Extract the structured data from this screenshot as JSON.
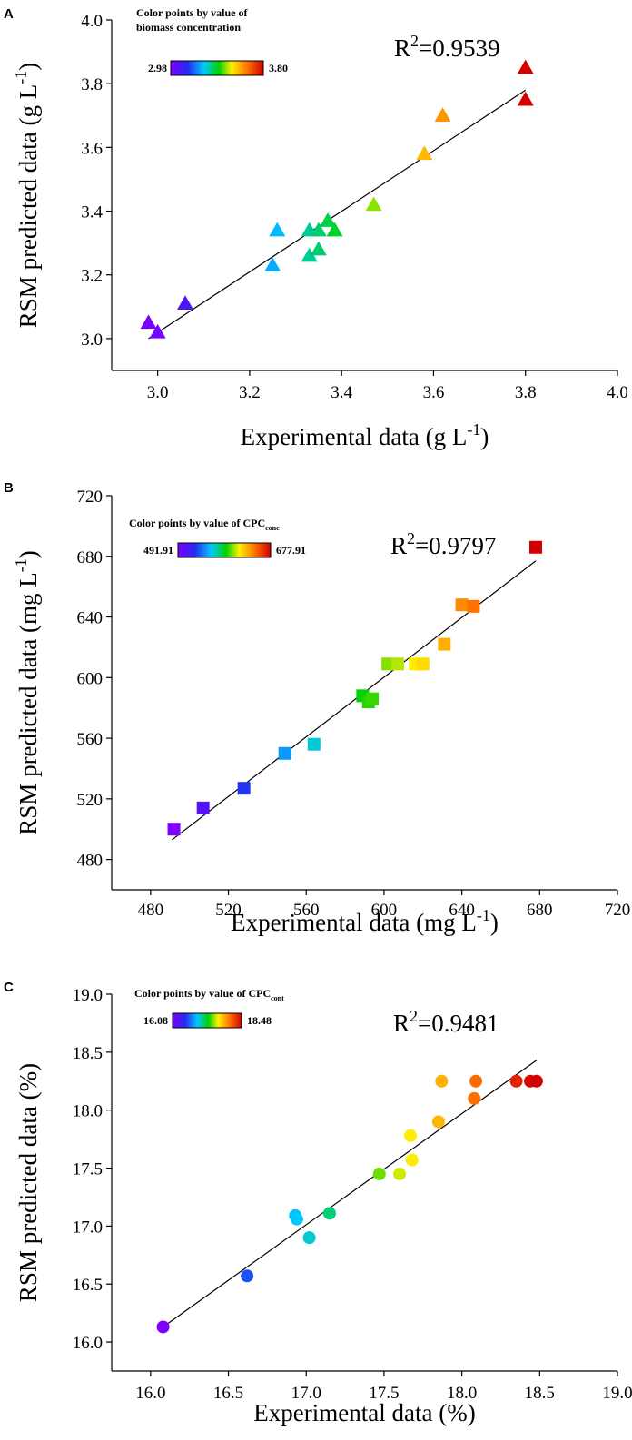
{
  "chart_data": [
    {
      "panel_label": "A",
      "type": "scatter",
      "marker": "triangle",
      "xlabel": "Experimental data (g L-1)",
      "xlabel_main": "Experimental data (g L",
      "xlabel_sup": "-1",
      "xlabel_tail": ")",
      "ylabel": "RSM predicted data (g L-1)",
      "ylabel_main": "RSM predicted data (g L",
      "ylabel_sup": "-1",
      "ylabel_tail": ")",
      "xlim": [
        2.9,
        4.0
      ],
      "ylim": [
        2.9,
        4.0
      ],
      "xticks": [
        "3.0",
        "3.2",
        "3.4",
        "3.6",
        "3.8",
        "4.0"
      ],
      "xtick_values": [
        3.0,
        3.2,
        3.4,
        3.6,
        3.8,
        4.0
      ],
      "yticks": [
        "3.0",
        "3.2",
        "3.4",
        "3.6",
        "3.8",
        "4.0"
      ],
      "ytick_values": [
        3.0,
        3.2,
        3.4,
        3.6,
        3.8,
        4.0
      ],
      "r2_label": "R",
      "r2_sup": "2",
      "r2_value": "=0.9539",
      "colorbar": {
        "title_line1": "Color points by value of",
        "title_line2": "biomass concentration",
        "title_sub": "",
        "min_label": "2.98",
        "max_label": "3.80",
        "min": 2.98,
        "max": 3.8,
        "position": "top-left"
      },
      "fit_line": {
        "x": [
          2.98,
          3.8
        ],
        "y": [
          3.0,
          3.78
        ]
      },
      "points": [
        {
          "x": 2.98,
          "y": 3.05
        },
        {
          "x": 3.0,
          "y": 3.02
        },
        {
          "x": 3.06,
          "y": 3.11
        },
        {
          "x": 3.25,
          "y": 3.23
        },
        {
          "x": 3.26,
          "y": 3.34
        },
        {
          "x": 3.33,
          "y": 3.26
        },
        {
          "x": 3.33,
          "y": 3.34
        },
        {
          "x": 3.35,
          "y": 3.28
        },
        {
          "x": 3.35,
          "y": 3.34
        },
        {
          "x": 3.37,
          "y": 3.37
        },
        {
          "x": 3.385,
          "y": 3.34
        },
        {
          "x": 3.47,
          "y": 3.42
        },
        {
          "x": 3.58,
          "y": 3.58
        },
        {
          "x": 3.62,
          "y": 3.7
        },
        {
          "x": 3.8,
          "y": 3.85
        },
        {
          "x": 3.8,
          "y": 3.75
        }
      ]
    },
    {
      "panel_label": "B",
      "type": "scatter",
      "marker": "square",
      "xlabel": "Experimental data  (mg L-1)",
      "xlabel_main": "Experimental data  (mg L",
      "xlabel_sup": "-1",
      "xlabel_tail": ")",
      "ylabel": "RSM predicted data (mg L-1)",
      "ylabel_main": "RSM predicted data (mg L",
      "ylabel_sup": "-1",
      "ylabel_tail": ")",
      "xlim": [
        460,
        720
      ],
      "ylim": [
        460,
        720
      ],
      "xticks": [
        "480",
        "520",
        "560",
        "600",
        "640",
        "680",
        "720"
      ],
      "xtick_values": [
        480,
        520,
        560,
        600,
        640,
        680,
        720
      ],
      "yticks": [
        "480",
        "520",
        "560",
        "600",
        "640",
        "680",
        "720"
      ],
      "ytick_values": [
        480,
        520,
        560,
        600,
        640,
        680,
        720
      ],
      "r2_label": "R",
      "r2_sup": "2",
      "r2_value": "=0.9797",
      "colorbar": {
        "title_line1": "Color points by value of CPC",
        "title_line2": "",
        "title_sub": "conc",
        "min_label": "491.91",
        "max_label": "677.91",
        "min": 491.91,
        "max": 677.91,
        "position": "top-left"
      },
      "fit_line": {
        "x": [
          491,
          678
        ],
        "y": [
          493,
          677
        ]
      },
      "points": [
        {
          "x": 492,
          "y": 500
        },
        {
          "x": 507,
          "y": 514
        },
        {
          "x": 528,
          "y": 527
        },
        {
          "x": 549,
          "y": 550
        },
        {
          "x": 564,
          "y": 556
        },
        {
          "x": 589,
          "y": 588
        },
        {
          "x": 592,
          "y": 584
        },
        {
          "x": 594,
          "y": 586
        },
        {
          "x": 602,
          "y": 609
        },
        {
          "x": 607,
          "y": 609
        },
        {
          "x": 616,
          "y": 609
        },
        {
          "x": 620,
          "y": 609
        },
        {
          "x": 631,
          "y": 622
        },
        {
          "x": 640,
          "y": 648
        },
        {
          "x": 646,
          "y": 647
        },
        {
          "x": 678,
          "y": 686
        }
      ]
    },
    {
      "panel_label": "C",
      "type": "scatter",
      "marker": "circle",
      "xlabel": "Experimental data (%)",
      "xlabel_main": "Experimental data (%)",
      "xlabel_sup": "",
      "xlabel_tail": "",
      "ylabel": "RSM predicted data (%)",
      "ylabel_main": "RSM predicted data (%)",
      "ylabel_sup": "",
      "ylabel_tail": "",
      "xlim": [
        15.75,
        19.0
      ],
      "ylim": [
        15.75,
        19.0
      ],
      "xticks": [
        "16.0",
        "16.5",
        "17.0",
        "17.5",
        "18.0",
        "18.5",
        "19.0"
      ],
      "xtick_values": [
        16.0,
        16.5,
        17.0,
        17.5,
        18.0,
        18.5,
        19.0
      ],
      "yticks": [
        "16.0",
        "16.5",
        "17.0",
        "17.5",
        "18.0",
        "18.5",
        "19.0"
      ],
      "ytick_values": [
        16.0,
        16.5,
        17.0,
        17.5,
        18.0,
        18.5,
        19.0
      ],
      "r2_label": "R",
      "r2_sup": "2",
      "r2_value": "=0.9481",
      "colorbar": {
        "title_line1": "Color points by value of CPC",
        "title_line2": "",
        "title_sub": "cont",
        "min_label": "16.08",
        "max_label": "18.48",
        "min": 16.08,
        "max": 18.48,
        "position": "top-left"
      },
      "fit_line": {
        "x": [
          16.08,
          18.48
        ],
        "y": [
          16.13,
          18.43
        ]
      },
      "points": [
        {
          "x": 16.08,
          "y": 16.13
        },
        {
          "x": 16.62,
          "y": 16.57
        },
        {
          "x": 16.93,
          "y": 17.09
        },
        {
          "x": 16.94,
          "y": 17.06
        },
        {
          "x": 17.02,
          "y": 16.9
        },
        {
          "x": 17.15,
          "y": 17.11
        },
        {
          "x": 17.47,
          "y": 17.45
        },
        {
          "x": 17.6,
          "y": 17.45
        },
        {
          "x": 17.67,
          "y": 17.78
        },
        {
          "x": 17.68,
          "y": 17.57
        },
        {
          "x": 17.85,
          "y": 17.9
        },
        {
          "x": 17.87,
          "y": 18.25
        },
        {
          "x": 18.08,
          "y": 18.1
        },
        {
          "x": 18.09,
          "y": 18.25
        },
        {
          "x": 18.35,
          "y": 18.25
        },
        {
          "x": 18.44,
          "y": 18.25
        },
        {
          "x": 18.48,
          "y": 18.25
        }
      ]
    }
  ]
}
